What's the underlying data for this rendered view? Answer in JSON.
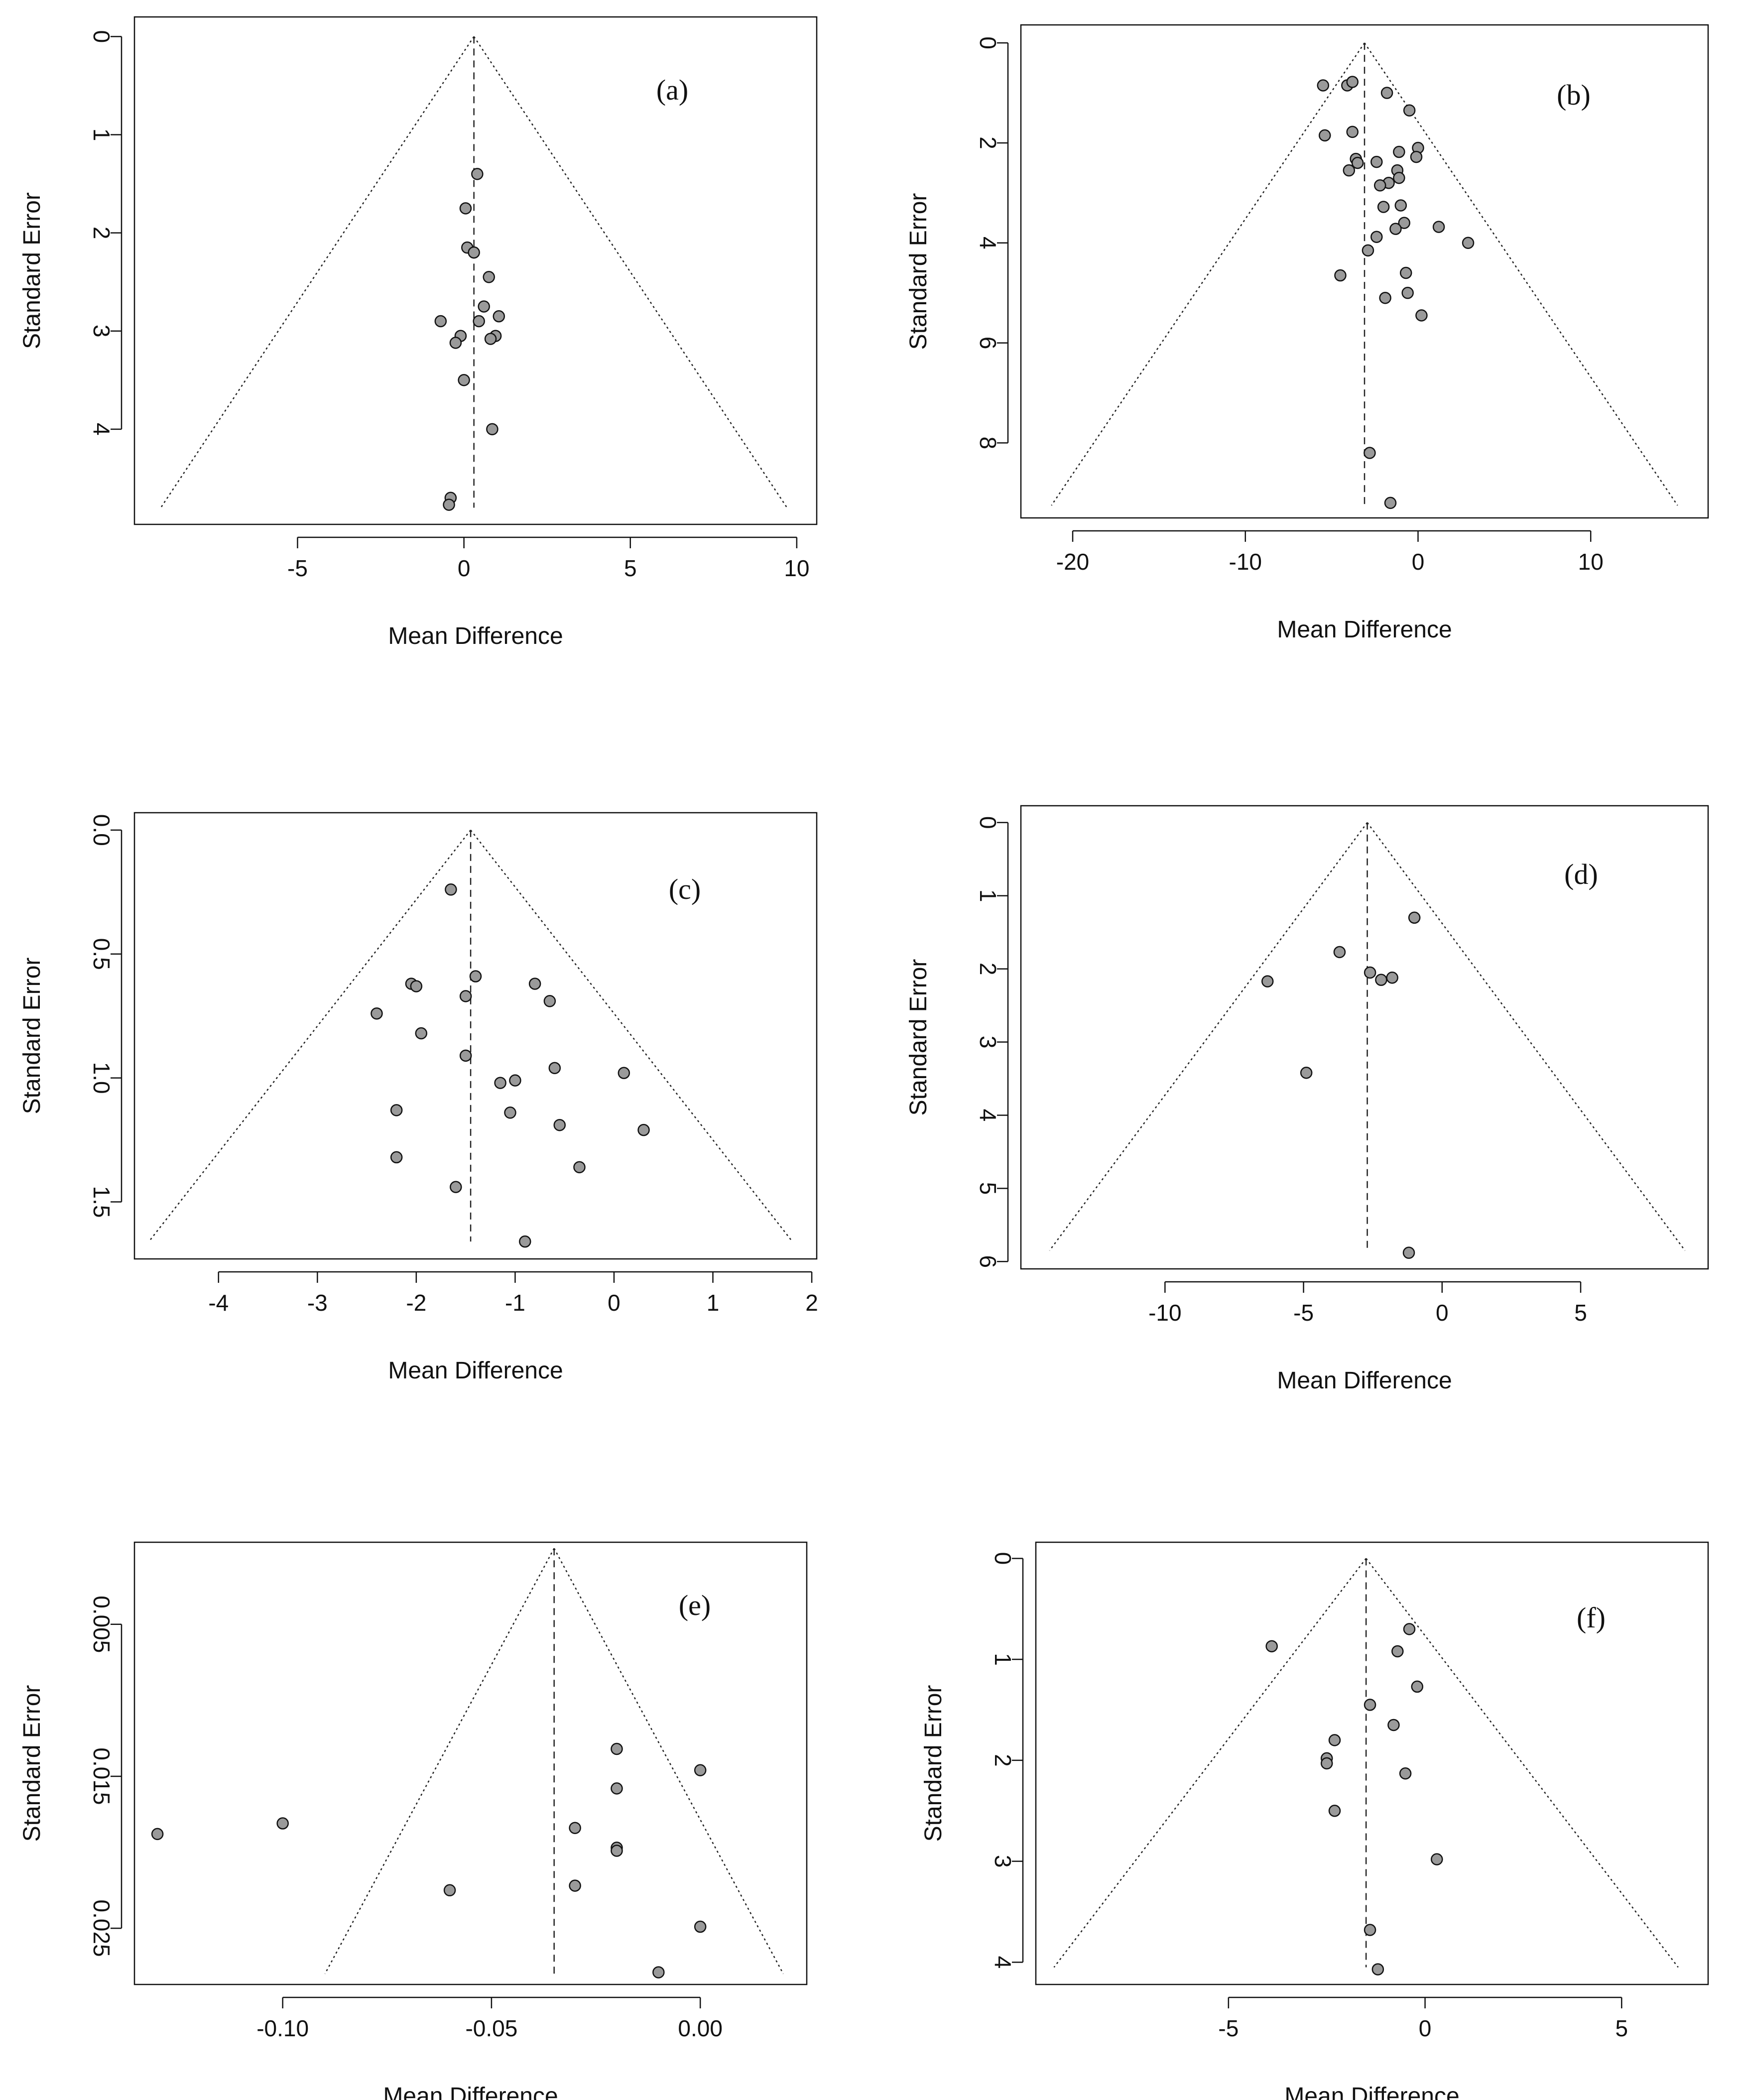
{
  "figure": {
    "name": "funnel-plots"
  },
  "chart_data": [
    {
      "type": "scatter",
      "panel_label": "(a)",
      "xlabel": "Mean Difference",
      "ylabel": "Standard Error",
      "xlim": [
        -9.9,
        10.6
      ],
      "ylim": [
        -0.2,
        4.97
      ],
      "xticks": [
        -5,
        0,
        5,
        10
      ],
      "xtick_labels": [
        "-5",
        "0",
        "5",
        "10"
      ],
      "yticks": [
        0,
        1,
        2,
        3,
        4
      ],
      "ytick_labels": [
        "0",
        "1",
        "2",
        "3",
        "4"
      ],
      "funnel": {
        "center": 0.3,
        "se_max": 4.8
      },
      "points": [
        {
          "x": 0.4,
          "y": 1.4
        },
        {
          "x": 0.05,
          "y": 1.75
        },
        {
          "x": 0.1,
          "y": 2.15
        },
        {
          "x": 0.3,
          "y": 2.2
        },
        {
          "x": 0.75,
          "y": 2.45
        },
        {
          "x": 0.6,
          "y": 2.75
        },
        {
          "x": 1.05,
          "y": 2.85
        },
        {
          "x": 0.45,
          "y": 2.9
        },
        {
          "x": -0.7,
          "y": 2.9
        },
        {
          "x": -0.1,
          "y": 3.05
        },
        {
          "x": -0.25,
          "y": 3.12
        },
        {
          "x": 0.95,
          "y": 3.05
        },
        {
          "x": 0.8,
          "y": 3.08
        },
        {
          "x": 0.0,
          "y": 3.5
        },
        {
          "x": 0.85,
          "y": 4.0
        },
        {
          "x": -0.4,
          "y": 4.7
        },
        {
          "x": -0.45,
          "y": 4.77
        }
      ]
    },
    {
      "type": "scatter",
      "panel_label": "(b)",
      "xlabel": "Mean Difference",
      "ylabel": "Standard Error",
      "xlim": [
        -23,
        16.8
      ],
      "ylim": [
        -0.36,
        9.5
      ],
      "xticks": [
        -20,
        -10,
        0,
        10
      ],
      "xtick_labels": [
        "-20",
        "-10",
        "0",
        "10"
      ],
      "yticks": [
        0,
        2,
        4,
        6,
        8
      ],
      "ytick_labels": [
        "0",
        "2",
        "4",
        "6",
        "8"
      ],
      "funnel": {
        "center": -3.1,
        "se_max": 9.25
      },
      "points": [
        {
          "x": -5.5,
          "y": 0.85
        },
        {
          "x": -4.1,
          "y": 0.85
        },
        {
          "x": -3.8,
          "y": 0.78
        },
        {
          "x": -1.8,
          "y": 1.0
        },
        {
          "x": -0.5,
          "y": 1.35
        },
        {
          "x": -5.4,
          "y": 1.85
        },
        {
          "x": -3.8,
          "y": 1.78
        },
        {
          "x": -3.6,
          "y": 2.32
        },
        {
          "x": -3.5,
          "y": 2.4
        },
        {
          "x": -4.0,
          "y": 2.55
        },
        {
          "x": -2.4,
          "y": 2.38
        },
        {
          "x": -1.1,
          "y": 2.18
        },
        {
          "x": 0.0,
          "y": 2.1
        },
        {
          "x": -0.1,
          "y": 2.28
        },
        {
          "x": -1.2,
          "y": 2.55
        },
        {
          "x": -1.1,
          "y": 2.7
        },
        {
          "x": -1.7,
          "y": 2.8
        },
        {
          "x": -2.2,
          "y": 2.85
        },
        {
          "x": -1.0,
          "y": 3.25
        },
        {
          "x": -2.0,
          "y": 3.28
        },
        {
          "x": -0.8,
          "y": 3.6
        },
        {
          "x": -1.3,
          "y": 3.72
        },
        {
          "x": -2.4,
          "y": 3.88
        },
        {
          "x": 1.2,
          "y": 3.68
        },
        {
          "x": 2.9,
          "y": 4.0
        },
        {
          "x": -2.9,
          "y": 4.15
        },
        {
          "x": -4.5,
          "y": 4.65
        },
        {
          "x": -0.7,
          "y": 4.6
        },
        {
          "x": -0.6,
          "y": 5.0
        },
        {
          "x": -1.9,
          "y": 5.1
        },
        {
          "x": 0.2,
          "y": 5.45
        },
        {
          "x": -2.8,
          "y": 8.2
        },
        {
          "x": -1.6,
          "y": 9.2
        }
      ]
    },
    {
      "type": "scatter",
      "panel_label": "(c)",
      "xlabel": "Mean Difference",
      "ylabel": "Standard Error",
      "xlim": [
        -4.85,
        2.05
      ],
      "ylim": [
        -0.07,
        1.73
      ],
      "xticks": [
        -4,
        -3,
        -2,
        -1,
        0,
        1,
        2
      ],
      "xtick_labels": [
        "-4",
        "-3",
        "-2",
        "-1",
        "0",
        "1",
        "2"
      ],
      "yticks": [
        0.0,
        0.5,
        1.0,
        1.5
      ],
      "ytick_labels": [
        "0.0",
        "0.5",
        "1.0",
        "1.5"
      ],
      "funnel": {
        "center": -1.45,
        "se_max": 1.66
      },
      "points": [
        {
          "x": -1.65,
          "y": 0.24
        },
        {
          "x": -1.4,
          "y": 0.59
        },
        {
          "x": -0.8,
          "y": 0.62
        },
        {
          "x": -2.05,
          "y": 0.62
        },
        {
          "x": -2.0,
          "y": 0.63
        },
        {
          "x": -1.5,
          "y": 0.67
        },
        {
          "x": -0.65,
          "y": 0.69
        },
        {
          "x": -2.4,
          "y": 0.74
        },
        {
          "x": -1.95,
          "y": 0.82
        },
        {
          "x": -1.5,
          "y": 0.91
        },
        {
          "x": -0.6,
          "y": 0.96
        },
        {
          "x": 0.1,
          "y": 0.98
        },
        {
          "x": -1.15,
          "y": 1.02
        },
        {
          "x": -1.0,
          "y": 1.01
        },
        {
          "x": -2.2,
          "y": 1.13
        },
        {
          "x": -1.05,
          "y": 1.14
        },
        {
          "x": -0.55,
          "y": 1.19
        },
        {
          "x": 0.3,
          "y": 1.21
        },
        {
          "x": -2.2,
          "y": 1.32
        },
        {
          "x": -0.35,
          "y": 1.36
        },
        {
          "x": -1.6,
          "y": 1.44
        },
        {
          "x": -0.9,
          "y": 1.66
        }
      ]
    },
    {
      "type": "scatter",
      "panel_label": "(d)",
      "xlabel": "Mean Difference",
      "ylabel": "Standard Error",
      "xlim": [
        -15.2,
        9.6
      ],
      "ylim": [
        -0.23,
        6.1
      ],
      "xticks": [
        -10,
        -5,
        0,
        5
      ],
      "xtick_labels": [
        "-10",
        "-5",
        "0",
        "5"
      ],
      "yticks": [
        0,
        1,
        2,
        3,
        4,
        5,
        6
      ],
      "ytick_labels": [
        "0",
        "1",
        "2",
        "3",
        "4",
        "5",
        "6"
      ],
      "funnel": {
        "center": -2.7,
        "se_max": 5.85
      },
      "points": [
        {
          "x": -1.0,
          "y": 1.3
        },
        {
          "x": -3.7,
          "y": 1.77
        },
        {
          "x": -2.6,
          "y": 2.05
        },
        {
          "x": -2.2,
          "y": 2.15
        },
        {
          "x": -1.8,
          "y": 2.12
        },
        {
          "x": -6.3,
          "y": 2.17
        },
        {
          "x": -4.9,
          "y": 3.42
        },
        {
          "x": -1.2,
          "y": 5.88
        }
      ]
    },
    {
      "type": "scatter",
      "panel_label": "(e)",
      "xlabel": "Mean Difference",
      "ylabel": "Standard Error",
      "xlim": [
        -0.1355,
        0.0255
      ],
      "ylim": [
        -0.0004,
        0.0287
      ],
      "xticks": [
        -0.1,
        -0.05,
        0.0
      ],
      "xtick_labels": [
        "-0.10",
        "-0.05",
        "0.00"
      ],
      "yticks": [
        0.005,
        0.015,
        0.025
      ],
      "ytick_labels": [
        "0.005",
        "0.015",
        "0.025"
      ],
      "funnel": {
        "center": -0.035,
        "se_max": 0.028
      },
      "points": [
        {
          "x": -0.02,
          "y": 0.0132
        },
        {
          "x": 0.0,
          "y": 0.0146
        },
        {
          "x": -0.02,
          "y": 0.0158
        },
        {
          "x": -0.1,
          "y": 0.0181
        },
        {
          "x": -0.13,
          "y": 0.0188
        },
        {
          "x": -0.03,
          "y": 0.0184
        },
        {
          "x": -0.02,
          "y": 0.0197
        },
        {
          "x": -0.02,
          "y": 0.0199
        },
        {
          "x": -0.06,
          "y": 0.0225
        },
        {
          "x": -0.03,
          "y": 0.0222
        },
        {
          "x": 0.0,
          "y": 0.0249
        },
        {
          "x": -0.01,
          "y": 0.0279
        }
      ]
    },
    {
      "type": "scatter",
      "panel_label": "(f)",
      "xlabel": "Mean Difference",
      "ylabel": "Standard Error",
      "xlim": [
        -9.9,
        7.2
      ],
      "ylim": [
        -0.16,
        4.22
      ],
      "xticks": [
        -5,
        0,
        5
      ],
      "xtick_labels": [
        "-5",
        "0",
        "5"
      ],
      "yticks": [
        0,
        1,
        2,
        3,
        4
      ],
      "ytick_labels": [
        "0",
        "1",
        "2",
        "3",
        "4"
      ],
      "funnel": {
        "center": -1.5,
        "se_max": 4.05
      },
      "points": [
        {
          "x": -0.4,
          "y": 0.7
        },
        {
          "x": -3.9,
          "y": 0.87
        },
        {
          "x": -0.7,
          "y": 0.92
        },
        {
          "x": -0.2,
          "y": 1.27
        },
        {
          "x": -1.4,
          "y": 1.45
        },
        {
          "x": -0.8,
          "y": 1.65
        },
        {
          "x": -2.3,
          "y": 1.8
        },
        {
          "x": -2.5,
          "y": 1.98
        },
        {
          "x": -2.5,
          "y": 2.03
        },
        {
          "x": -0.5,
          "y": 2.13
        },
        {
          "x": -2.3,
          "y": 2.5
        },
        {
          "x": 0.3,
          "y": 2.98
        },
        {
          "x": -1.4,
          "y": 3.68
        },
        {
          "x": -1.2,
          "y": 4.07
        }
      ]
    }
  ]
}
